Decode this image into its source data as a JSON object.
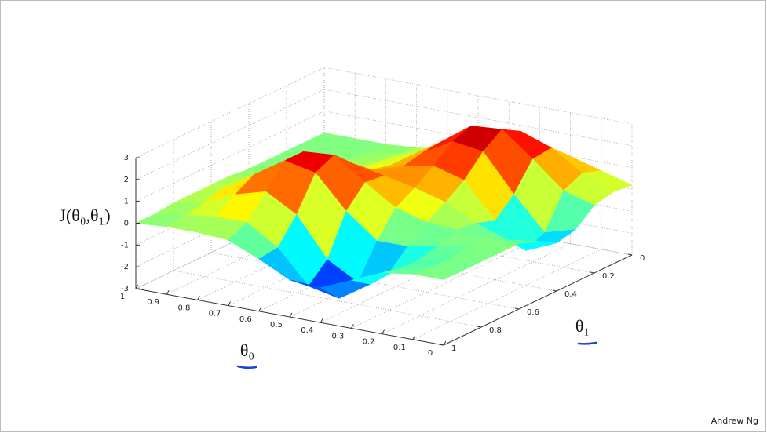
{
  "chart_data": {
    "type": "surface",
    "zlabel": "J(θ₀,θ₁)",
    "xlabel": "θ₀",
    "ylabel": "θ₁",
    "x": [
      0,
      0.1,
      0.2,
      0.3,
      0.4,
      0.5,
      0.6,
      0.7,
      0.8,
      0.9,
      1
    ],
    "y": [
      0,
      0.1,
      0.2,
      0.3,
      0.4,
      0.5,
      0.6,
      0.7,
      0.8,
      0.9,
      1
    ],
    "z": [
      [
        0.2,
        0.3,
        0.1,
        -0.6,
        -0.8,
        -0.3,
        0,
        0,
        0,
        0,
        0
      ],
      [
        0.6,
        0.9,
        0.5,
        -1.0,
        -1.4,
        -0.5,
        0,
        0,
        -0.1,
        -0.1,
        0
      ],
      [
        1.0,
        1.8,
        1.7,
        0.5,
        -0.3,
        0,
        0.1,
        -0.2,
        -0.4,
        -0.4,
        -0.2
      ],
      [
        1.3,
        2.3,
        2.8,
        2.2,
        1.3,
        0.7,
        0.2,
        -0.5,
        -1.3,
        -1.4,
        -0.8
      ],
      [
        1.2,
        2.1,
        2.7,
        2.4,
        1.7,
        1.1,
        0.6,
        -0.5,
        -2.0,
        -2.3,
        -1.4
      ],
      [
        0.8,
        1.3,
        1.7,
        1.6,
        1.4,
        1.4,
        1.5,
        0.6,
        -1.2,
        -2.0,
        -1.3
      ],
      [
        0.3,
        0.6,
        0.8,
        0.8,
        1.0,
        1.7,
        2.5,
        2.1,
        0.6,
        -0.5,
        -0.6
      ],
      [
        0.1,
        0.2,
        0.3,
        0.4,
        0.7,
        1.5,
        2.4,
        2.4,
        1.4,
        0.4,
        0
      ],
      [
        0,
        0,
        0.1,
        0.1,
        0.4,
        0.9,
        1.4,
        1.5,
        1.0,
        0.4,
        0.1
      ],
      [
        0,
        0,
        0,
        0,
        0.1,
        0.3,
        0.5,
        0.6,
        0.4,
        0.2,
        0.1
      ],
      [
        0,
        0,
        0,
        0,
        0,
        0.1,
        0.1,
        0.1,
        0.1,
        0,
        0
      ]
    ],
    "xlim": [
      0,
      1
    ],
    "xticks": [
      0,
      0.1,
      0.2,
      0.3,
      0.4,
      0.5,
      0.6,
      0.7,
      0.8,
      0.9,
      1
    ],
    "ylim": [
      0,
      1
    ],
    "yticks": [
      0,
      0.2,
      0.4,
      0.6,
      0.8,
      1
    ],
    "zlim": [
      -3,
      3
    ],
    "zticks": [
      -3,
      -2,
      -1,
      0,
      1,
      2,
      3
    ],
    "colormap": "jet",
    "grid": true
  },
  "footer": "Andrew Ng"
}
